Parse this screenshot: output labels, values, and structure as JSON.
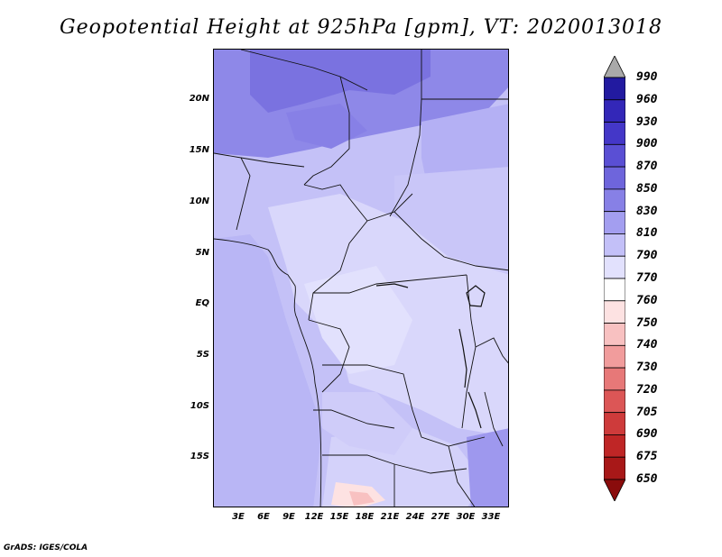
{
  "title": "Geopotential Height at 925hPa [gpm], VT: 2020013018",
  "credit": "GrADS: IGES/COLA",
  "map": {
    "lat_labels": [
      "20N",
      "15N",
      "10N",
      "5N",
      "EQ",
      "5S",
      "10S",
      "15S"
    ],
    "lon_labels": [
      "3E",
      "6E",
      "9E",
      "12E",
      "15E",
      "18E",
      "21E",
      "24E",
      "27E",
      "30E",
      "33E"
    ],
    "extent": {
      "lon_min": 0,
      "lon_max": 35,
      "lat_min": -20,
      "lat_max": 25
    }
  },
  "colorbar": {
    "labels": [
      "990",
      "960",
      "930",
      "900",
      "870",
      "850",
      "830",
      "810",
      "790",
      "770",
      "760",
      "750",
      "740",
      "730",
      "720",
      "705",
      "690",
      "675",
      "650"
    ],
    "colors": [
      "#110c86",
      "#221aa0",
      "#3327b8",
      "#4437c8",
      "#5a4fd4",
      "#6e65dc",
      "#8780e6",
      "#a39ef0",
      "#c3c0f8",
      "#e2e1fd",
      "#ffffff",
      "#fde2e2",
      "#f8c1c1",
      "#f19c9c",
      "#e77878",
      "#dc5656",
      "#ce3b3b",
      "#bf2626",
      "#a81818",
      "#8a0c0c"
    ],
    "top_triangle_color": "#a9a9a9"
  }
}
